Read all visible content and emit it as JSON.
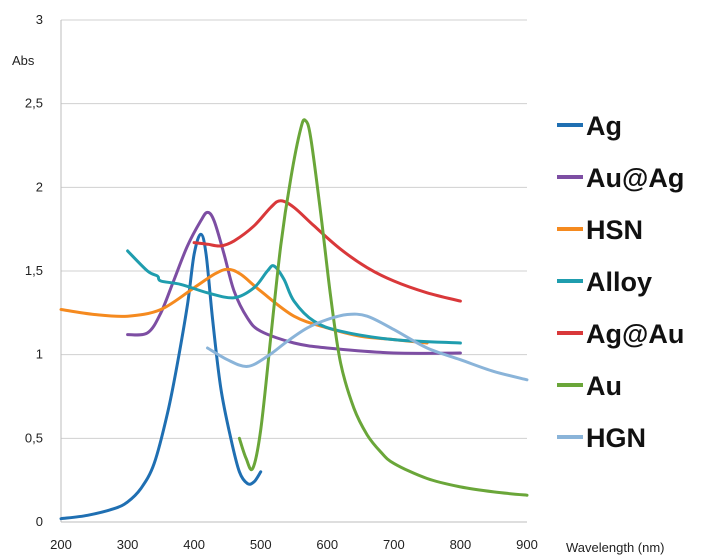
{
  "chart_data": {
    "type": "line",
    "xlabel": "Wavelength (nm)",
    "ylabel": "Abs",
    "xlim": [
      200,
      900
    ],
    "ylim": [
      0,
      3
    ],
    "x_ticks": [
      "200",
      "300",
      "400",
      "500",
      "600",
      "700",
      "800",
      "900"
    ],
    "y_ticks": [
      "0",
      "0,5",
      "1",
      "1,5",
      "2",
      "2,5",
      "3"
    ],
    "grid": "horizontal",
    "legend_position": "right",
    "series": [
      {
        "name": "Ag",
        "color": "#1f6fb2",
        "points": [
          [
            200,
            0.02
          ],
          [
            240,
            0.04
          ],
          [
            280,
            0.08
          ],
          [
            300,
            0.12
          ],
          [
            320,
            0.2
          ],
          [
            340,
            0.35
          ],
          [
            360,
            0.65
          ],
          [
            375,
            0.95
          ],
          [
            390,
            1.3
          ],
          [
            400,
            1.6
          ],
          [
            410,
            1.72
          ],
          [
            418,
            1.6
          ],
          [
            428,
            1.2
          ],
          [
            440,
            0.8
          ],
          [
            455,
            0.5
          ],
          [
            468,
            0.3
          ],
          [
            480,
            0.23
          ],
          [
            490,
            0.24
          ],
          [
            500,
            0.3
          ]
        ]
      },
      {
        "name": "Au@Ag",
        "color": "#7d4ea3",
        "points": [
          [
            300,
            1.12
          ],
          [
            330,
            1.13
          ],
          [
            350,
            1.25
          ],
          [
            370,
            1.45
          ],
          [
            390,
            1.65
          ],
          [
            410,
            1.8
          ],
          [
            420,
            1.85
          ],
          [
            430,
            1.8
          ],
          [
            445,
            1.6
          ],
          [
            460,
            1.38
          ],
          [
            480,
            1.22
          ],
          [
            500,
            1.14
          ],
          [
            550,
            1.07
          ],
          [
            600,
            1.04
          ],
          [
            700,
            1.01
          ],
          [
            800,
            1.01
          ]
        ]
      },
      {
        "name": "HSN",
        "color": "#f58a1f",
        "points": [
          [
            200,
            1.27
          ],
          [
            250,
            1.24
          ],
          [
            300,
            1.23
          ],
          [
            350,
            1.27
          ],
          [
            400,
            1.4
          ],
          [
            430,
            1.48
          ],
          [
            450,
            1.51
          ],
          [
            470,
            1.48
          ],
          [
            500,
            1.38
          ],
          [
            550,
            1.23
          ],
          [
            600,
            1.16
          ],
          [
            650,
            1.11
          ],
          [
            700,
            1.09
          ],
          [
            750,
            1.07
          ]
        ]
      },
      {
        "name": "Alloy",
        "color": "#1f9dae",
        "points": [
          [
            300,
            1.62
          ],
          [
            330,
            1.5
          ],
          [
            345,
            1.47
          ],
          [
            350,
            1.44
          ],
          [
            380,
            1.42
          ],
          [
            420,
            1.37
          ],
          [
            460,
            1.34
          ],
          [
            490,
            1.4
          ],
          [
            510,
            1.5
          ],
          [
            520,
            1.53
          ],
          [
            535,
            1.45
          ],
          [
            550,
            1.32
          ],
          [
            580,
            1.2
          ],
          [
            620,
            1.14
          ],
          [
            700,
            1.09
          ],
          [
            800,
            1.07
          ]
        ]
      },
      {
        "name": "Ag@Au",
        "color": "#d9383a",
        "points": [
          [
            400,
            1.67
          ],
          [
            420,
            1.66
          ],
          [
            440,
            1.65
          ],
          [
            460,
            1.68
          ],
          [
            490,
            1.77
          ],
          [
            515,
            1.88
          ],
          [
            530,
            1.92
          ],
          [
            550,
            1.88
          ],
          [
            580,
            1.77
          ],
          [
            620,
            1.63
          ],
          [
            660,
            1.52
          ],
          [
            700,
            1.44
          ],
          [
            750,
            1.37
          ],
          [
            800,
            1.32
          ]
        ]
      },
      {
        "name": "Au",
        "color": "#6aa639",
        "points": [
          [
            468,
            0.5
          ],
          [
            478,
            0.38
          ],
          [
            488,
            0.32
          ],
          [
            500,
            0.55
          ],
          [
            515,
            1.1
          ],
          [
            530,
            1.65
          ],
          [
            545,
            2.05
          ],
          [
            560,
            2.35
          ],
          [
            567,
            2.4
          ],
          [
            575,
            2.3
          ],
          [
            590,
            1.85
          ],
          [
            605,
            1.35
          ],
          [
            620,
            0.95
          ],
          [
            640,
            0.68
          ],
          [
            660,
            0.52
          ],
          [
            680,
            0.42
          ],
          [
            700,
            0.35
          ],
          [
            750,
            0.26
          ],
          [
            800,
            0.21
          ],
          [
            850,
            0.18
          ],
          [
            900,
            0.16
          ]
        ]
      },
      {
        "name": "HGN",
        "color": "#8ab4d9",
        "points": [
          [
            420,
            1.04
          ],
          [
            450,
            0.97
          ],
          [
            480,
            0.93
          ],
          [
            510,
            0.99
          ],
          [
            540,
            1.08
          ],
          [
            570,
            1.16
          ],
          [
            600,
            1.21
          ],
          [
            630,
            1.24
          ],
          [
            660,
            1.23
          ],
          [
            700,
            1.15
          ],
          [
            750,
            1.04
          ],
          [
            800,
            0.97
          ],
          [
            850,
            0.9
          ],
          [
            900,
            0.85
          ]
        ]
      }
    ]
  }
}
